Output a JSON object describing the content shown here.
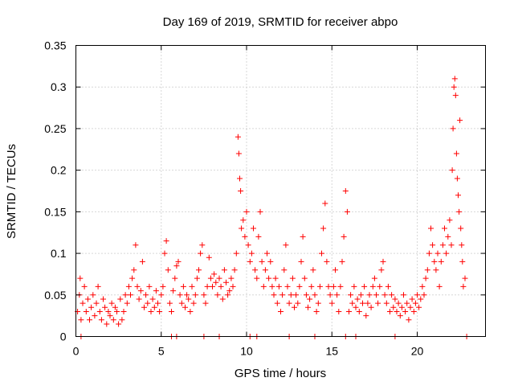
{
  "chart_data": {
    "type": "scatter",
    "title": "Day 169 of 2019, SRMTID for receiver abpo",
    "xlabel": "GPS time / hours",
    "ylabel": "SRMTID / TECUs",
    "xlim": [
      0,
      24
    ],
    "ylim": [
      0,
      0.35
    ],
    "xticks": [
      0,
      5,
      10,
      15,
      20
    ],
    "xtick_labels": [
      "0",
      "5",
      "10",
      "15",
      "20"
    ],
    "yticks": [
      0,
      0.05,
      0.1,
      0.15,
      0.2,
      0.25,
      0.3,
      0.35
    ],
    "ytick_labels": [
      "0",
      "0.05",
      "0.1",
      "0.15",
      "0.2",
      "0.25",
      "0.3",
      "0.35"
    ],
    "grid": true,
    "marker": "+",
    "series": [
      {
        "name": "SRMTID",
        "color": "#ff0000",
        "points": [
          [
            0.1,
            0.03
          ],
          [
            0.2,
            0.05
          ],
          [
            0.25,
            0.07
          ],
          [
            0.3,
            0.02
          ],
          [
            0.4,
            0.04
          ],
          [
            0.5,
            0.06
          ],
          [
            0.6,
            0.03
          ],
          [
            0.7,
            0.045
          ],
          [
            0.8,
            0.02
          ],
          [
            0.9,
            0.035
          ],
          [
            1.0,
            0.05
          ],
          [
            1.1,
            0.025
          ],
          [
            1.2,
            0.04
          ],
          [
            1.3,
            0.06
          ],
          [
            1.4,
            0.03
          ],
          [
            1.5,
            0.02
          ],
          [
            1.6,
            0.045
          ],
          [
            1.7,
            0.035
          ],
          [
            1.8,
            0.015
          ],
          [
            1.9,
            0.03
          ],
          [
            2.0,
            0.025
          ],
          [
            2.1,
            0.04
          ],
          [
            2.2,
            0.02
          ],
          [
            2.3,
            0.035
          ],
          [
            2.4,
            0.03
          ],
          [
            2.5,
            0.015
          ],
          [
            2.6,
            0.045
          ],
          [
            2.7,
            0.02
          ],
          [
            2.8,
            0.03
          ],
          [
            2.9,
            0.05
          ],
          [
            3.0,
            0.04
          ],
          [
            3.1,
            0.06
          ],
          [
            3.2,
            0.05
          ],
          [
            3.3,
            0.07
          ],
          [
            3.4,
            0.08
          ],
          [
            3.5,
            0.11
          ],
          [
            3.6,
            0.06
          ],
          [
            3.7,
            0.045
          ],
          [
            3.8,
            0.055
          ],
          [
            3.9,
            0.09
          ],
          [
            4.0,
            0.035
          ],
          [
            4.1,
            0.05
          ],
          [
            4.2,
            0.04
          ],
          [
            4.3,
            0.06
          ],
          [
            4.4,
            0.03
          ],
          [
            4.5,
            0.045
          ],
          [
            4.6,
            0.035
          ],
          [
            4.7,
            0.055
          ],
          [
            4.8,
            0.04
          ],
          [
            4.9,
            0.03
          ],
          [
            5.0,
            0.05
          ],
          [
            5.1,
            0.06
          ],
          [
            5.2,
            0.1
          ],
          [
            5.3,
            0.115
          ],
          [
            5.4,
            0.08
          ],
          [
            5.5,
            0.04
          ],
          [
            5.6,
            0.03
          ],
          [
            5.7,
            0.055
          ],
          [
            5.8,
            0.07
          ],
          [
            5.9,
            0.085
          ],
          [
            6.0,
            0.09
          ],
          [
            6.1,
            0.05
          ],
          [
            6.2,
            0.04
          ],
          [
            6.3,
            0.06
          ],
          [
            6.4,
            0.035
          ],
          [
            6.5,
            0.05
          ],
          [
            6.6,
            0.045
          ],
          [
            6.7,
            0.03
          ],
          [
            6.8,
            0.06
          ],
          [
            6.9,
            0.04
          ],
          [
            7.0,
            0.05
          ],
          [
            7.1,
            0.07
          ],
          [
            7.2,
            0.08
          ],
          [
            7.3,
            0.1
          ],
          [
            7.4,
            0.11
          ],
          [
            7.5,
            0.05
          ],
          [
            7.6,
            0.04
          ],
          [
            7.7,
            0.06
          ],
          [
            7.8,
            0.095
          ],
          [
            7.9,
            0.07
          ],
          [
            8.0,
            0.06
          ],
          [
            8.1,
            0.075
          ],
          [
            8.2,
            0.065
          ],
          [
            8.3,
            0.05
          ],
          [
            8.4,
            0.07
          ],
          [
            8.5,
            0.06
          ],
          [
            8.6,
            0.045
          ],
          [
            8.7,
            0.08
          ],
          [
            8.8,
            0.065
          ],
          [
            8.9,
            0.05
          ],
          [
            9.0,
            0.055
          ],
          [
            9.1,
            0.07
          ],
          [
            9.2,
            0.06
          ],
          [
            9.3,
            0.08
          ],
          [
            9.4,
            0.1
          ],
          [
            9.5,
            0.24
          ],
          [
            9.55,
            0.22
          ],
          [
            9.6,
            0.19
          ],
          [
            9.65,
            0.175
          ],
          [
            9.7,
            0.13
          ],
          [
            9.8,
            0.14
          ],
          [
            9.9,
            0.12
          ],
          [
            10.0,
            0.15
          ],
          [
            10.1,
            0.11
          ],
          [
            10.2,
            0.09
          ],
          [
            10.3,
            0.1
          ],
          [
            10.4,
            0.13
          ],
          [
            10.5,
            0.08
          ],
          [
            10.6,
            0.07
          ],
          [
            10.7,
            0.12
          ],
          [
            10.8,
            0.15
          ],
          [
            10.9,
            0.09
          ],
          [
            11.0,
            0.06
          ],
          [
            11.1,
            0.08
          ],
          [
            11.2,
            0.1
          ],
          [
            11.3,
            0.07
          ],
          [
            11.4,
            0.09
          ],
          [
            11.5,
            0.06
          ],
          [
            11.6,
            0.05
          ],
          [
            11.7,
            0.07
          ],
          [
            11.8,
            0.04
          ],
          [
            11.9,
            0.06
          ],
          [
            12.0,
            0.03
          ],
          [
            12.1,
            0.05
          ],
          [
            12.2,
            0.08
          ],
          [
            12.3,
            0.11
          ],
          [
            12.4,
            0.06
          ],
          [
            12.5,
            0.04
          ],
          [
            12.6,
            0.05
          ],
          [
            12.7,
            0.07
          ],
          [
            12.8,
            0.035
          ],
          [
            12.9,
            0.05
          ],
          [
            13.0,
            0.04
          ],
          [
            13.1,
            0.06
          ],
          [
            13.2,
            0.09
          ],
          [
            13.3,
            0.12
          ],
          [
            13.4,
            0.07
          ],
          [
            13.5,
            0.05
          ],
          [
            13.6,
            0.035
          ],
          [
            13.7,
            0.045
          ],
          [
            13.8,
            0.06
          ],
          [
            13.9,
            0.08
          ],
          [
            14.0,
            0.05
          ],
          [
            14.1,
            0.03
          ],
          [
            14.2,
            0.04
          ],
          [
            14.3,
            0.06
          ],
          [
            14.4,
            0.1
          ],
          [
            14.5,
            0.13
          ],
          [
            14.6,
            0.16
          ],
          [
            14.7,
            0.09
          ],
          [
            14.8,
            0.06
          ],
          [
            14.9,
            0.05
          ],
          [
            15.0,
            0.04
          ],
          [
            15.1,
            0.06
          ],
          [
            15.2,
            0.08
          ],
          [
            15.3,
            0.05
          ],
          [
            15.4,
            0.03
          ],
          [
            15.5,
            0.06
          ],
          [
            15.6,
            0.09
          ],
          [
            15.7,
            0.12
          ],
          [
            15.8,
            0.175
          ],
          [
            15.9,
            0.15
          ],
          [
            16.0,
            0.03
          ],
          [
            16.1,
            0.05
          ],
          [
            16.2,
            0.04
          ],
          [
            16.3,
            0.06
          ],
          [
            16.4,
            0.035
          ],
          [
            16.5,
            0.045
          ],
          [
            16.6,
            0.03
          ],
          [
            16.7,
            0.05
          ],
          [
            16.8,
            0.04
          ],
          [
            16.9,
            0.06
          ],
          [
            17.0,
            0.025
          ],
          [
            17.1,
            0.04
          ],
          [
            17.2,
            0.05
          ],
          [
            17.3,
            0.035
          ],
          [
            17.4,
            0.06
          ],
          [
            17.5,
            0.07
          ],
          [
            17.6,
            0.05
          ],
          [
            17.7,
            0.04
          ],
          [
            17.8,
            0.06
          ],
          [
            17.9,
            0.08
          ],
          [
            18.0,
            0.09
          ],
          [
            18.1,
            0.05
          ],
          [
            18.2,
            0.04
          ],
          [
            18.3,
            0.06
          ],
          [
            18.4,
            0.03
          ],
          [
            18.5,
            0.05
          ],
          [
            18.6,
            0.035
          ],
          [
            18.7,
            0.045
          ],
          [
            18.8,
            0.03
          ],
          [
            18.9,
            0.04
          ],
          [
            19.0,
            0.025
          ],
          [
            19.1,
            0.035
          ],
          [
            19.2,
            0.05
          ],
          [
            19.3,
            0.03
          ],
          [
            19.4,
            0.04
          ],
          [
            19.5,
            0.02
          ],
          [
            19.6,
            0.035
          ],
          [
            19.7,
            0.045
          ],
          [
            19.8,
            0.03
          ],
          [
            19.9,
            0.04
          ],
          [
            20.0,
            0.05
          ],
          [
            20.1,
            0.035
          ],
          [
            20.2,
            0.045
          ],
          [
            20.3,
            0.06
          ],
          [
            20.4,
            0.05
          ],
          [
            20.5,
            0.07
          ],
          [
            20.6,
            0.08
          ],
          [
            20.7,
            0.1
          ],
          [
            20.8,
            0.13
          ],
          [
            20.9,
            0.11
          ],
          [
            21.0,
            0.09
          ],
          [
            21.1,
            0.08
          ],
          [
            21.2,
            0.1
          ],
          [
            21.3,
            0.06
          ],
          [
            21.4,
            0.09
          ],
          [
            21.5,
            0.11
          ],
          [
            21.6,
            0.13
          ],
          [
            21.7,
            0.1
          ],
          [
            21.8,
            0.12
          ],
          [
            21.9,
            0.14
          ],
          [
            22.0,
            0.11
          ],
          [
            22.05,
            0.2
          ],
          [
            22.1,
            0.25
          ],
          [
            22.15,
            0.3
          ],
          [
            22.2,
            0.31
          ],
          [
            22.25,
            0.29
          ],
          [
            22.3,
            0.22
          ],
          [
            22.35,
            0.19
          ],
          [
            22.4,
            0.17
          ],
          [
            22.45,
            0.15
          ],
          [
            22.5,
            0.26
          ],
          [
            22.55,
            0.13
          ],
          [
            22.6,
            0.11
          ],
          [
            22.65,
            0.09
          ],
          [
            22.7,
            0.06
          ],
          [
            22.8,
            0.07
          ],
          [
            0.3,
            0.0
          ],
          [
            5.6,
            0.0
          ],
          [
            5.9,
            0.0
          ],
          [
            7.5,
            0.0
          ],
          [
            8.4,
            0.0
          ],
          [
            10.2,
            0.0
          ],
          [
            10.6,
            0.0
          ],
          [
            12.5,
            0.0
          ],
          [
            14.0,
            0.0
          ],
          [
            15.8,
            0.0
          ],
          [
            16.4,
            0.0
          ],
          [
            18.7,
            0.0
          ],
          [
            22.9,
            0.0
          ]
        ]
      }
    ]
  }
}
